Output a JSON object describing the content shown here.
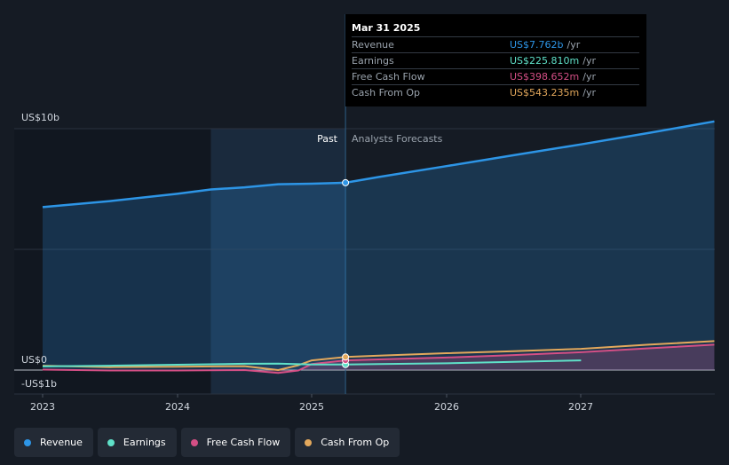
{
  "tooltip": {
    "date": "Mar 31 2025",
    "rows": [
      {
        "label": "Revenue",
        "value": "US$7.762b",
        "unit": "/yr",
        "color": "#2d95e6"
      },
      {
        "label": "Earnings",
        "value": "US$225.810m",
        "unit": "/yr",
        "color": "#5fe0c8"
      },
      {
        "label": "Free Cash Flow",
        "value": "US$398.652m",
        "unit": "/yr",
        "color": "#d44f85"
      },
      {
        "label": "Cash From Op",
        "value": "US$543.235m",
        "unit": "/yr",
        "color": "#e3a85c"
      }
    ]
  },
  "sections": {
    "past": "Past",
    "forecast": "Analysts Forecasts"
  },
  "legend": [
    {
      "label": "Revenue",
      "color": "#2d95e6"
    },
    {
      "label": "Earnings",
      "color": "#5fe0c8"
    },
    {
      "label": "Free Cash Flow",
      "color": "#d44f85"
    },
    {
      "label": "Cash From Op",
      "color": "#e3a85c"
    }
  ],
  "chart_data": {
    "type": "line",
    "y_ticks": [
      "US$10b",
      "US$0",
      "-US$1b"
    ],
    "x_ticks": [
      "2023",
      "2024",
      "2025",
      "2026",
      "2027"
    ],
    "ylim": [
      -1,
      10
    ],
    "xlim": [
      2022.9,
      2027.99
    ],
    "divider_x": 2025.25,
    "highlight_range": [
      2024.25,
      2025.25
    ],
    "grid": true,
    "legend_position": "bottom",
    "series": [
      {
        "name": "Revenue",
        "color": "#2d95e6",
        "area": true,
        "points": [
          [
            2023.0,
            6.75
          ],
          [
            2023.5,
            7.0
          ],
          [
            2024.0,
            7.3
          ],
          [
            2024.25,
            7.48
          ],
          [
            2024.5,
            7.57
          ],
          [
            2024.75,
            7.7
          ],
          [
            2025.0,
            7.72
          ],
          [
            2025.25,
            7.76
          ],
          [
            2025.5,
            8.0
          ],
          [
            2026.0,
            8.45
          ],
          [
            2026.5,
            8.9
          ],
          [
            2027.0,
            9.35
          ],
          [
            2027.5,
            9.82
          ],
          [
            2027.99,
            10.3
          ]
        ]
      },
      {
        "name": "Earnings",
        "color": "#5fe0c8",
        "area": false,
        "points": [
          [
            2023.0,
            0.15
          ],
          [
            2023.5,
            0.18
          ],
          [
            2024.0,
            0.22
          ],
          [
            2024.5,
            0.26
          ],
          [
            2024.75,
            0.27
          ],
          [
            2025.0,
            0.23
          ],
          [
            2025.25,
            0.23
          ],
          [
            2025.5,
            0.25
          ],
          [
            2026.0,
            0.28
          ],
          [
            2026.5,
            0.34
          ],
          [
            2027.0,
            0.4
          ]
        ]
      },
      {
        "name": "Free Cash Flow",
        "color": "#d44f85",
        "area": true,
        "points": [
          [
            2023.0,
            0.02
          ],
          [
            2023.5,
            -0.02
          ],
          [
            2024.0,
            -0.02
          ],
          [
            2024.5,
            0.0
          ],
          [
            2024.75,
            -0.12
          ],
          [
            2024.9,
            -0.02
          ],
          [
            2025.0,
            0.25
          ],
          [
            2025.25,
            0.4
          ],
          [
            2025.5,
            0.44
          ],
          [
            2026.0,
            0.52
          ],
          [
            2026.5,
            0.62
          ],
          [
            2027.0,
            0.74
          ],
          [
            2027.5,
            0.9
          ],
          [
            2027.99,
            1.05
          ]
        ]
      },
      {
        "name": "Cash From Op",
        "color": "#e3a85c",
        "area": false,
        "points": [
          [
            2023.0,
            0.18
          ],
          [
            2023.5,
            0.12
          ],
          [
            2024.0,
            0.14
          ],
          [
            2024.5,
            0.16
          ],
          [
            2024.75,
            0.0
          ],
          [
            2024.9,
            0.2
          ],
          [
            2025.0,
            0.4
          ],
          [
            2025.25,
            0.54
          ],
          [
            2025.5,
            0.6
          ],
          [
            2026.0,
            0.7
          ],
          [
            2026.5,
            0.78
          ],
          [
            2027.0,
            0.88
          ],
          [
            2027.5,
            1.05
          ],
          [
            2027.99,
            1.2
          ]
        ]
      }
    ]
  }
}
